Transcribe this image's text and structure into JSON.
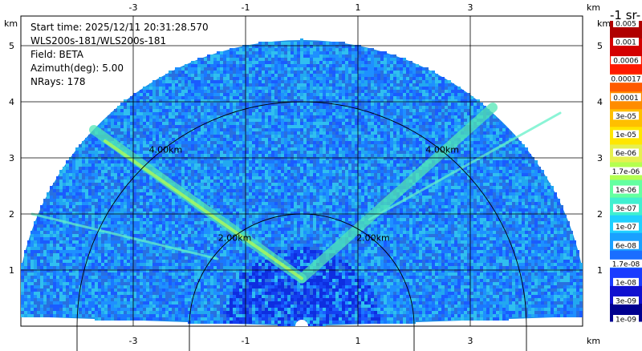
{
  "chart_data": {
    "type": "heatmap",
    "info": [
      "Start time: 2025/12/11 20:31:28.570",
      "WLS200s-181/WLS200s-181",
      "Field: BETA",
      "Azimuth(deg): 5.00",
      "NRays: 178"
    ],
    "x_unit": "km",
    "y_unit": "km",
    "xlim": [
      -5,
      5
    ],
    "ylim": [
      0,
      6
    ],
    "x_ticks": [
      -3,
      -1,
      1,
      3
    ],
    "y_ticks": [
      1,
      2,
      3,
      4,
      5
    ],
    "grid": true,
    "range_rings": [
      {
        "r": 2.0,
        "label": "2.00km"
      },
      {
        "r": 4.0,
        "label": "4.00km"
      }
    ],
    "sector": {
      "max_range_km": 5.1,
      "angle_start_deg": 2,
      "angle_end_deg": 178
    },
    "colorbar_title": "-1 sr-",
    "colorbar_labels": [
      "0.005",
      "0.001",
      "0.0006",
      "0.00017",
      "0.0001",
      "3e-05",
      "1e-05",
      "6e-06",
      "1.7e-06",
      "1e-06",
      "3e-07",
      "1e-07",
      "6e-08",
      "1.7e-08",
      "1e-08",
      "3e-09",
      "1e-09"
    ],
    "colorbar_colors": [
      "#b00000",
      "#d40000",
      "#ff1a00",
      "#ff5a00",
      "#ff8c00",
      "#ffbf00",
      "#ffe600",
      "#e6f050",
      "#b4ff50",
      "#64ffa0",
      "#40f0d0",
      "#20d0ff",
      "#1aa0ff",
      "#1a6eff",
      "#1a3cff",
      "#1010d0",
      "#000090"
    ],
    "colorbar_unit": "km"
  }
}
